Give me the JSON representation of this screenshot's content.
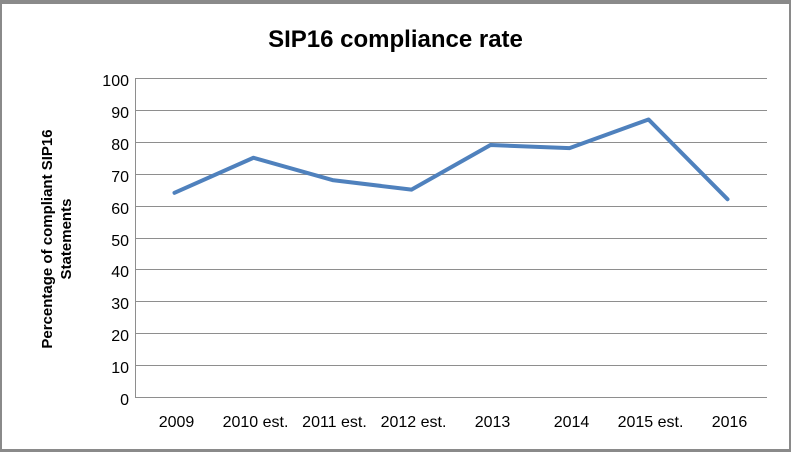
{
  "window": {
    "frame_border_color": "#8a8a8a",
    "background_color": "#ffffff"
  },
  "chart_data": {
    "type": "line",
    "title": "SIP16 compliance rate",
    "categories": [
      "2009",
      "2010 est.",
      "2011 est.",
      "2012 est.",
      "2013",
      "2014",
      "2015 est.",
      "2016"
    ],
    "values": [
      64,
      75,
      68,
      65,
      79,
      78,
      87,
      62
    ],
    "xlabel": "",
    "ylabel": "Percentage of compliant SIP16 Statements",
    "ylabel_lines": [
      "Percentage of compliant SIP16",
      "Statements"
    ],
    "ylim": [
      0,
      100
    ],
    "yticks": [
      0,
      10,
      20,
      30,
      40,
      50,
      60,
      70,
      80,
      90,
      100
    ],
    "grid": "horizontal",
    "legend": "none",
    "line_color": "#4F81BD",
    "line_width": 4,
    "gridline_color": "#8e8e8e",
    "axis_color": "#8e8e8e",
    "text_color": "#000000"
  }
}
